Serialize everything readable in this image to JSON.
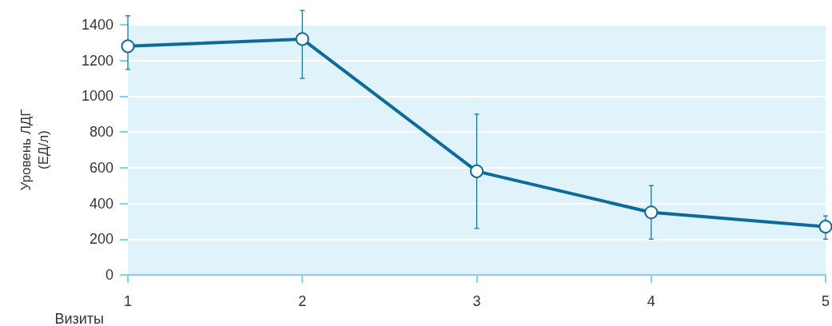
{
  "chart_data": {
    "type": "line",
    "xlabel": "Визиты",
    "ylabel": "Уровень ЛДГ\n(ЕД/л)",
    "x": [
      1,
      2,
      3,
      4,
      5
    ],
    "series": [
      {
        "color": "#0e6a9a",
        "values": [
          1280,
          1320,
          580,
          350,
          270
        ],
        "errors": [
          [
            1150,
            1450
          ],
          [
            1100,
            1480
          ],
          [
            260,
            900
          ],
          [
            200,
            500
          ],
          [
            200,
            330
          ]
        ]
      }
    ],
    "xlim": [
      1,
      5
    ],
    "xticks": [
      1,
      2,
      3,
      4,
      5
    ],
    "ylim": [
      0,
      1400
    ],
    "yticks": [
      0,
      200,
      400,
      600,
      800,
      1000,
      1200,
      1400
    ],
    "grid": "y",
    "marker": "circle",
    "line_style": "solid"
  }
}
